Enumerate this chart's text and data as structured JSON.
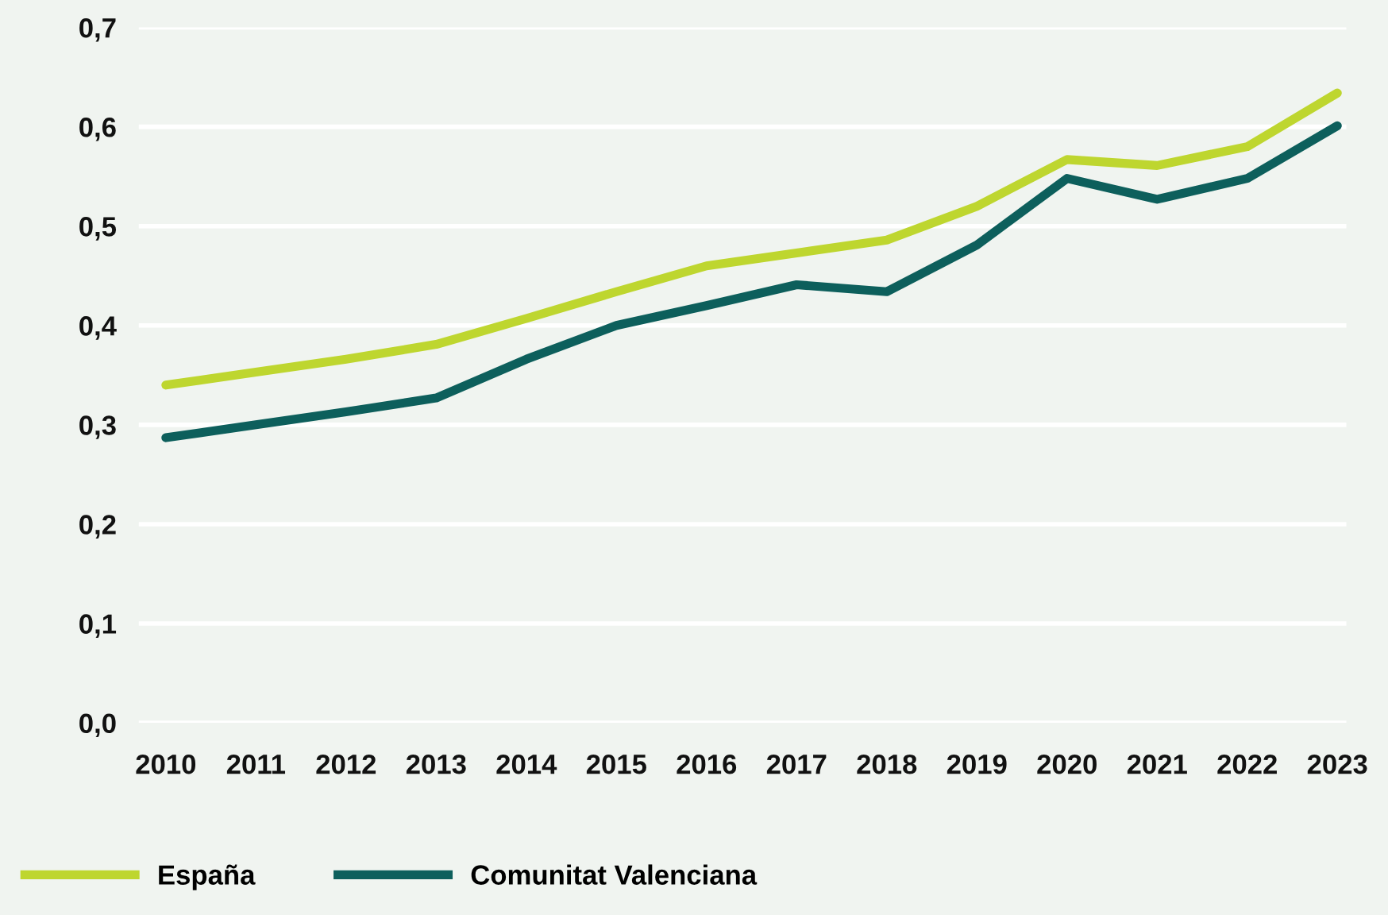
{
  "chart_data": {
    "type": "line",
    "categories": [
      "2010",
      "2011",
      "2012",
      "2013",
      "2014",
      "2015",
      "2016",
      "2017",
      "2018",
      "2019",
      "2020",
      "2021",
      "2022",
      "2023"
    ],
    "series": [
      {
        "name": "España",
        "color": "#bed62f",
        "values": [
          0.34,
          0.353,
          0.366,
          0.381,
          0.407,
          0.434,
          0.46,
          0.473,
          0.486,
          0.52,
          0.567,
          0.561,
          0.58,
          0.634
        ]
      },
      {
        "name": "Comunitat Valenciana",
        "color": "#0d5f5c",
        "values": [
          0.287,
          0.3,
          0.313,
          0.327,
          0.366,
          0.4,
          0.42,
          0.441,
          0.434,
          0.481,
          0.548,
          0.527,
          0.548,
          0.601
        ]
      }
    ],
    "ylim": [
      0,
      0.7
    ],
    "yticks": [
      {
        "value": 0,
        "label": "0,0"
      },
      {
        "value": 0.1,
        "label": "0,1"
      },
      {
        "value": 0.2,
        "label": "0,2"
      },
      {
        "value": 0.3,
        "label": "0,3"
      },
      {
        "value": 0.4,
        "label": "0,4"
      },
      {
        "value": 0.5,
        "label": "0,5"
      },
      {
        "value": 0.6,
        "label": "0,6"
      },
      {
        "value": 0.7,
        "label": "0,7"
      }
    ],
    "grid": "y",
    "legend": "bottom left",
    "marker": "none",
    "line_style": "solid"
  }
}
